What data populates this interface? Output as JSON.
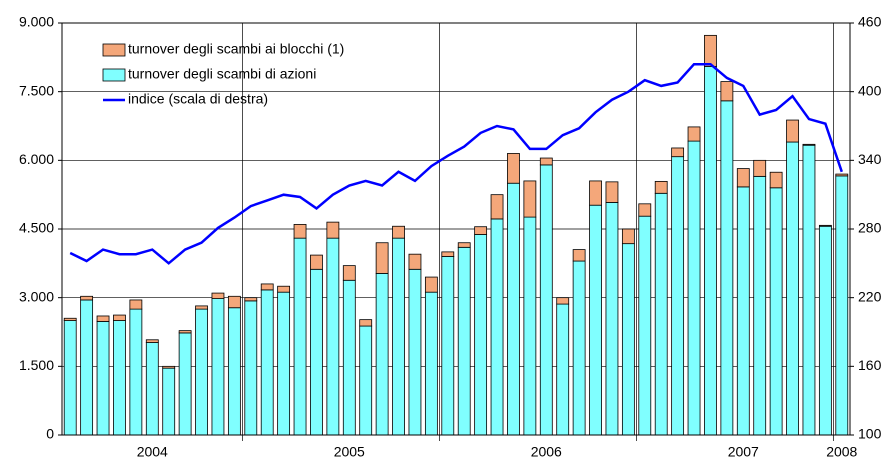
{
  "chart_data": {
    "type": "bar",
    "categories": [
      null,
      null,
      null,
      null,
      null,
      "2004",
      null,
      null,
      null,
      null,
      null,
      null,
      null,
      null,
      null,
      null,
      null,
      "2005",
      null,
      null,
      null,
      null,
      null,
      null,
      null,
      null,
      null,
      null,
      null,
      "2006",
      null,
      null,
      null,
      null,
      null,
      null,
      null,
      null,
      null,
      null,
      null,
      "2007",
      null,
      null,
      null,
      null,
      null,
      "2008"
    ],
    "series": [
      {
        "name": "turnover degli scambi di azioni",
        "color": "#80ffff",
        "values": [
          2500,
          2950,
          2480,
          2500,
          2750,
          2020,
          1460,
          2230,
          2750,
          2980,
          2780,
          2930,
          3170,
          3120,
          4300,
          3620,
          4300,
          3380,
          2380,
          3530,
          4300,
          3620,
          3120,
          3900,
          4100,
          4380,
          4720,
          5500,
          4760,
          5900,
          2860,
          3800,
          5020,
          5080,
          4180,
          4780,
          5280,
          6080,
          6420,
          8050,
          7300,
          5420,
          5650,
          5400,
          6400,
          6330,
          4560,
          5660
        ]
      },
      {
        "name": "turnover degli scambi ai blocchi (1)",
        "color": "#f4a77a",
        "values": [
          50,
          80,
          120,
          120,
          200,
          60,
          40,
          50,
          70,
          120,
          250,
          70,
          130,
          130,
          300,
          310,
          350,
          320,
          140,
          670,
          260,
          330,
          330,
          100,
          100,
          170,
          530,
          650,
          790,
          150,
          140,
          250,
          530,
          450,
          320,
          270,
          260,
          190,
          310,
          680,
          420,
          400,
          350,
          340,
          480,
          20,
          20,
          40
        ]
      },
      {
        "name": "indice (scala di destra)",
        "color": "#0000ff",
        "axis": "y2",
        "type": "line",
        "values": [
          259,
          252,
          262,
          258,
          258,
          262,
          250,
          262,
          268,
          281,
          290,
          300,
          305,
          310,
          308,
          298,
          310,
          318,
          322,
          318,
          330,
          322,
          335,
          344,
          352,
          364,
          370,
          367,
          350,
          350,
          362,
          368,
          382,
          393,
          400,
          410,
          405,
          408,
          424,
          424,
          412,
          405,
          380,
          384,
          396,
          376,
          372,
          330
        ]
      }
    ],
    "ylim": [
      0,
      9000
    ],
    "yticks": [
      0,
      {
        "value": 1500,
        "label": "1.500"
      },
      {
        "value": 3000,
        "label": "3.000"
      },
      {
        "value": 4500,
        "label": "4.500"
      },
      {
        "value": 6000,
        "label": "6.000"
      },
      {
        "value": 7500,
        "label": "7.500"
      },
      {
        "value": 9000,
        "label": "9.000"
      }
    ],
    "y2lim": [
      100,
      460
    ],
    "y2ticks": [
      100,
      160,
      220,
      280,
      340,
      400,
      460
    ],
    "grid": true,
    "legend": "upper left"
  }
}
